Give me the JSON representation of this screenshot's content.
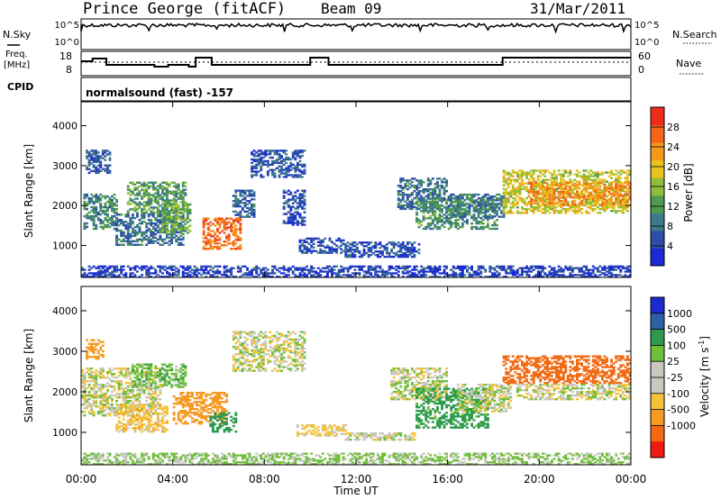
{
  "header": {
    "station": "Prince George (fitACF)",
    "beam": "Beam 09",
    "date": "31/Mar/2011"
  },
  "nsky_panel": {
    "label": "N.Sky",
    "left_ticks": [
      "10^5",
      "10^0"
    ],
    "right_label": "N.Search",
    "right_ticks": [
      "10^5",
      "10^0"
    ]
  },
  "freq_panel": {
    "label_line1": "Freq.",
    "label_line2": "[MHz]",
    "left_ticks": [
      "18",
      "8"
    ],
    "right_label": "Nave",
    "right_ticks": [
      "60",
      "0"
    ]
  },
  "cpid_panel": {
    "label": "CPID",
    "text": "normalsound (fast) -157"
  },
  "colors": {
    "power_scale": [
      "#1a2bd6",
      "#2e4fa8",
      "#3d7a8c",
      "#4f9a4e",
      "#8fbf3a",
      "#e5c41e",
      "#f39a1a",
      "#f4651a",
      "#ef2c1a"
    ],
    "velocity_scale": [
      "#ee1b14",
      "#f26a14",
      "#f59a22",
      "#f6c23a",
      "#c8c8c0",
      "#c8c8c0",
      "#6fbf3a",
      "#2e9a4e",
      "#2d5fa3",
      "#1b2bd0"
    ]
  },
  "chart_data": [
    {
      "type": "heatmap",
      "name_key": "power",
      "ylabel": "Slant Range [km]",
      "y_ticks": [
        "1000",
        "2000",
        "3000",
        "4000"
      ],
      "ylim": [
        200,
        4600
      ],
      "xlim": [
        0,
        24
      ],
      "colorbar_label": "Power [dB]",
      "colorbar_ticks": [
        "4",
        "8",
        "12",
        "16",
        "20",
        "24",
        "28"
      ],
      "colorbar_range": [
        0,
        32
      ],
      "blobs": [
        {
          "t0": 0.1,
          "t1": 1.6,
          "r0": 1400,
          "r1": 2300,
          "v": 10
        },
        {
          "t0": 1.5,
          "t1": 4.5,
          "r0": 1000,
          "r1": 1800,
          "v": 8
        },
        {
          "t0": 2.0,
          "t1": 4.6,
          "r0": 1800,
          "r1": 2600,
          "v": 12
        },
        {
          "t0": 0.2,
          "t1": 1.3,
          "r0": 2800,
          "r1": 3400,
          "v": 6
        },
        {
          "t0": 3.5,
          "t1": 4.8,
          "r0": 1300,
          "r1": 2100,
          "v": 14
        },
        {
          "t0": 5.3,
          "t1": 7.0,
          "r0": 900,
          "r1": 1700,
          "v": 26
        },
        {
          "t0": 6.6,
          "t1": 7.6,
          "r0": 1700,
          "r1": 2400,
          "v": 7
        },
        {
          "t0": 7.4,
          "t1": 9.8,
          "r0": 2700,
          "r1": 3400,
          "v": 6
        },
        {
          "t0": 8.8,
          "t1": 9.8,
          "r0": 1500,
          "r1": 2400,
          "v": 5
        },
        {
          "t0": 9.5,
          "t1": 11.5,
          "r0": 800,
          "r1": 1200,
          "v": 5
        },
        {
          "t0": 11.5,
          "t1": 14.8,
          "r0": 700,
          "r1": 1100,
          "v": 5
        },
        {
          "t0": 13.8,
          "t1": 16.0,
          "r0": 1900,
          "r1": 2700,
          "v": 8
        },
        {
          "t0": 14.6,
          "t1": 18.2,
          "r0": 1400,
          "r1": 2200,
          "v": 11
        },
        {
          "t0": 16.0,
          "t1": 18.5,
          "r0": 1700,
          "r1": 2300,
          "v": 9
        },
        {
          "t0": 18.4,
          "t1": 24.0,
          "r0": 1800,
          "r1": 2900,
          "v": 18
        },
        {
          "t0": 19.5,
          "t1": 24.0,
          "r0": 2000,
          "r1": 2600,
          "v": 24
        },
        {
          "t0": 0.0,
          "t1": 24.0,
          "r0": 200,
          "r1": 500,
          "v": 4
        }
      ]
    },
    {
      "type": "heatmap",
      "name_key": "velocity",
      "ylabel": "Slant Range [km]",
      "y_ticks": [
        "1000",
        "2000",
        "3000",
        "4000"
      ],
      "ylim": [
        200,
        4600
      ],
      "xlim": [
        0,
        24
      ],
      "colorbar_label": "Velocity [m s^-1]",
      "colorbar_ticks": [
        "1000",
        "500",
        "100",
        "25",
        "-25",
        "-100",
        "-500",
        "-1000"
      ],
      "blobs": [
        {
          "t0": 0.2,
          "t1": 1.0,
          "r0": 2800,
          "r1": 3300,
          "v": -300
        },
        {
          "t0": 0.0,
          "t1": 3.5,
          "r0": 1400,
          "r1": 2600,
          "v": 0
        },
        {
          "t0": 1.5,
          "t1": 3.8,
          "r0": 1000,
          "r1": 1700,
          "v": -60
        },
        {
          "t0": 2.2,
          "t1": 4.6,
          "r0": 2100,
          "r1": 2700,
          "v": 60
        },
        {
          "t0": 4.0,
          "t1": 6.4,
          "r0": 1200,
          "r1": 2000,
          "v": -400
        },
        {
          "t0": 5.6,
          "t1": 6.8,
          "r0": 1000,
          "r1": 1500,
          "v": 300
        },
        {
          "t0": 6.6,
          "t1": 9.8,
          "r0": 2500,
          "r1": 3500,
          "v": 0
        },
        {
          "t0": 9.4,
          "t1": 11.6,
          "r0": 900,
          "r1": 1200,
          "v": -40
        },
        {
          "t0": 11.5,
          "t1": 14.6,
          "r0": 800,
          "r1": 1000,
          "v": 0
        },
        {
          "t0": 13.5,
          "t1": 16.0,
          "r0": 1800,
          "r1": 2600,
          "v": 0
        },
        {
          "t0": 14.6,
          "t1": 17.8,
          "r0": 1100,
          "r1": 2100,
          "v": 150
        },
        {
          "t0": 16.4,
          "t1": 18.8,
          "r0": 1500,
          "r1": 2200,
          "v": 0
        },
        {
          "t0": 18.4,
          "t1": 24.0,
          "r0": 2200,
          "r1": 2900,
          "v": -600
        },
        {
          "t0": 19.0,
          "t1": 24.0,
          "r0": 1800,
          "r1": 2200,
          "v": 0
        },
        {
          "t0": 0.0,
          "t1": 24.0,
          "r0": 200,
          "r1": 500,
          "v": 40
        }
      ]
    }
  ],
  "x_axis": {
    "ticks": [
      "00:00",
      "04:00",
      "08:00",
      "12:00",
      "16:00",
      "20:00",
      "00:00"
    ],
    "label": "Time UT"
  }
}
